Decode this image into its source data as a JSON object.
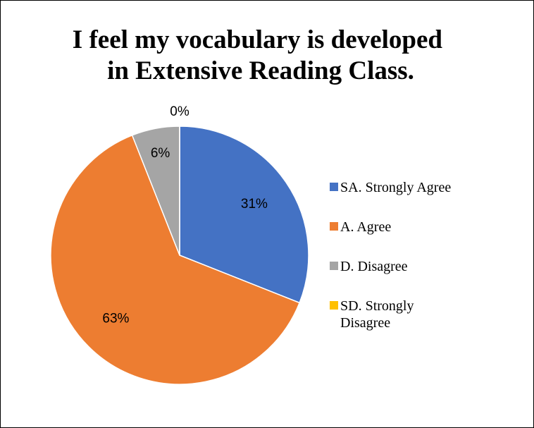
{
  "chart_data": {
    "type": "pie",
    "title": "I feel my vocabulary is developed in Extensive Reading Class.",
    "categories": [
      "SA. Strongly Agree",
      "A. Agree",
      "D. Disagree",
      "SD. Strongly Disagree"
    ],
    "values": [
      31,
      63,
      6,
      0
    ],
    "value_labels": [
      "31%",
      "63%",
      "6%",
      "0%"
    ],
    "colors": [
      "#4472c4",
      "#ed7d31",
      "#a5a5a5",
      "#ffc000"
    ],
    "legend": "right"
  }
}
